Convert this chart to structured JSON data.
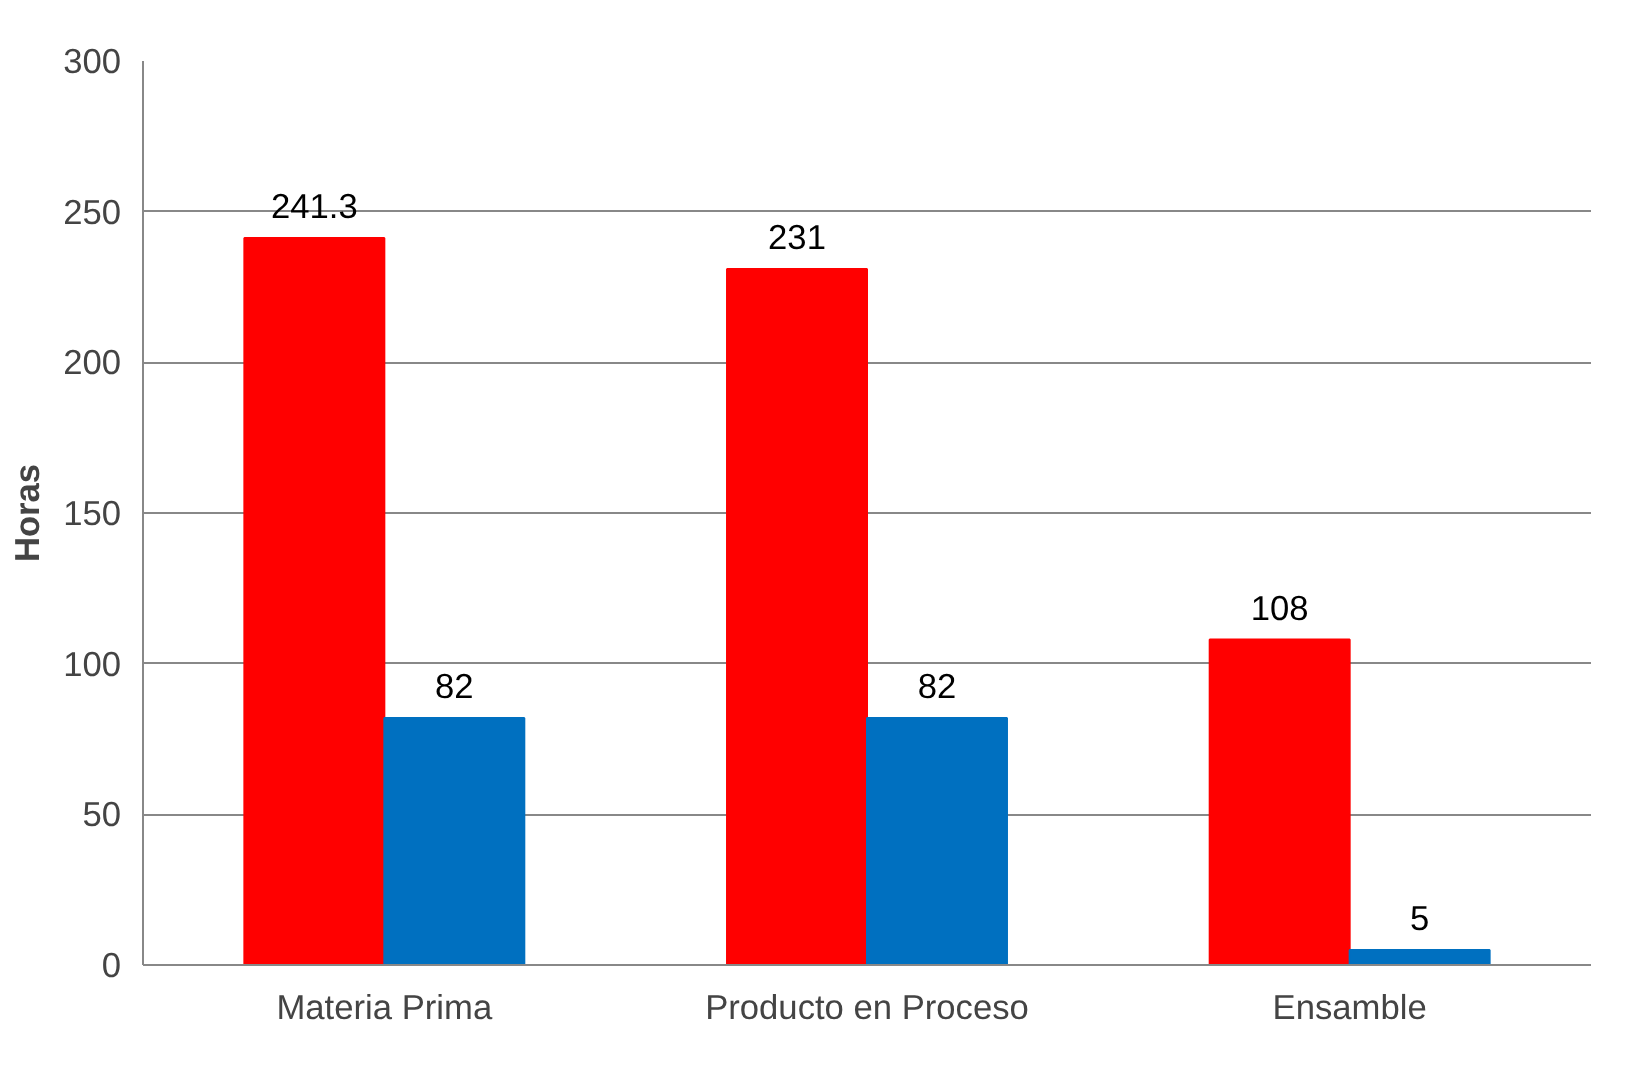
{
  "chart_data": {
    "type": "bar",
    "ylabel": "Horas",
    "categories": [
      "Materia Prima",
      "Producto en Proceso",
      "Ensamble"
    ],
    "series": [
      {
        "color": "#ff0000",
        "values": [
          241.3,
          231,
          108
        ]
      },
      {
        "color": "#0070c0",
        "values": [
          82,
          82,
          5
        ]
      }
    ],
    "ylim": [
      0,
      300
    ],
    "yticks": [
      0,
      50,
      100,
      150,
      200,
      250,
      300
    ],
    "grid": "y",
    "data_labels": true
  }
}
